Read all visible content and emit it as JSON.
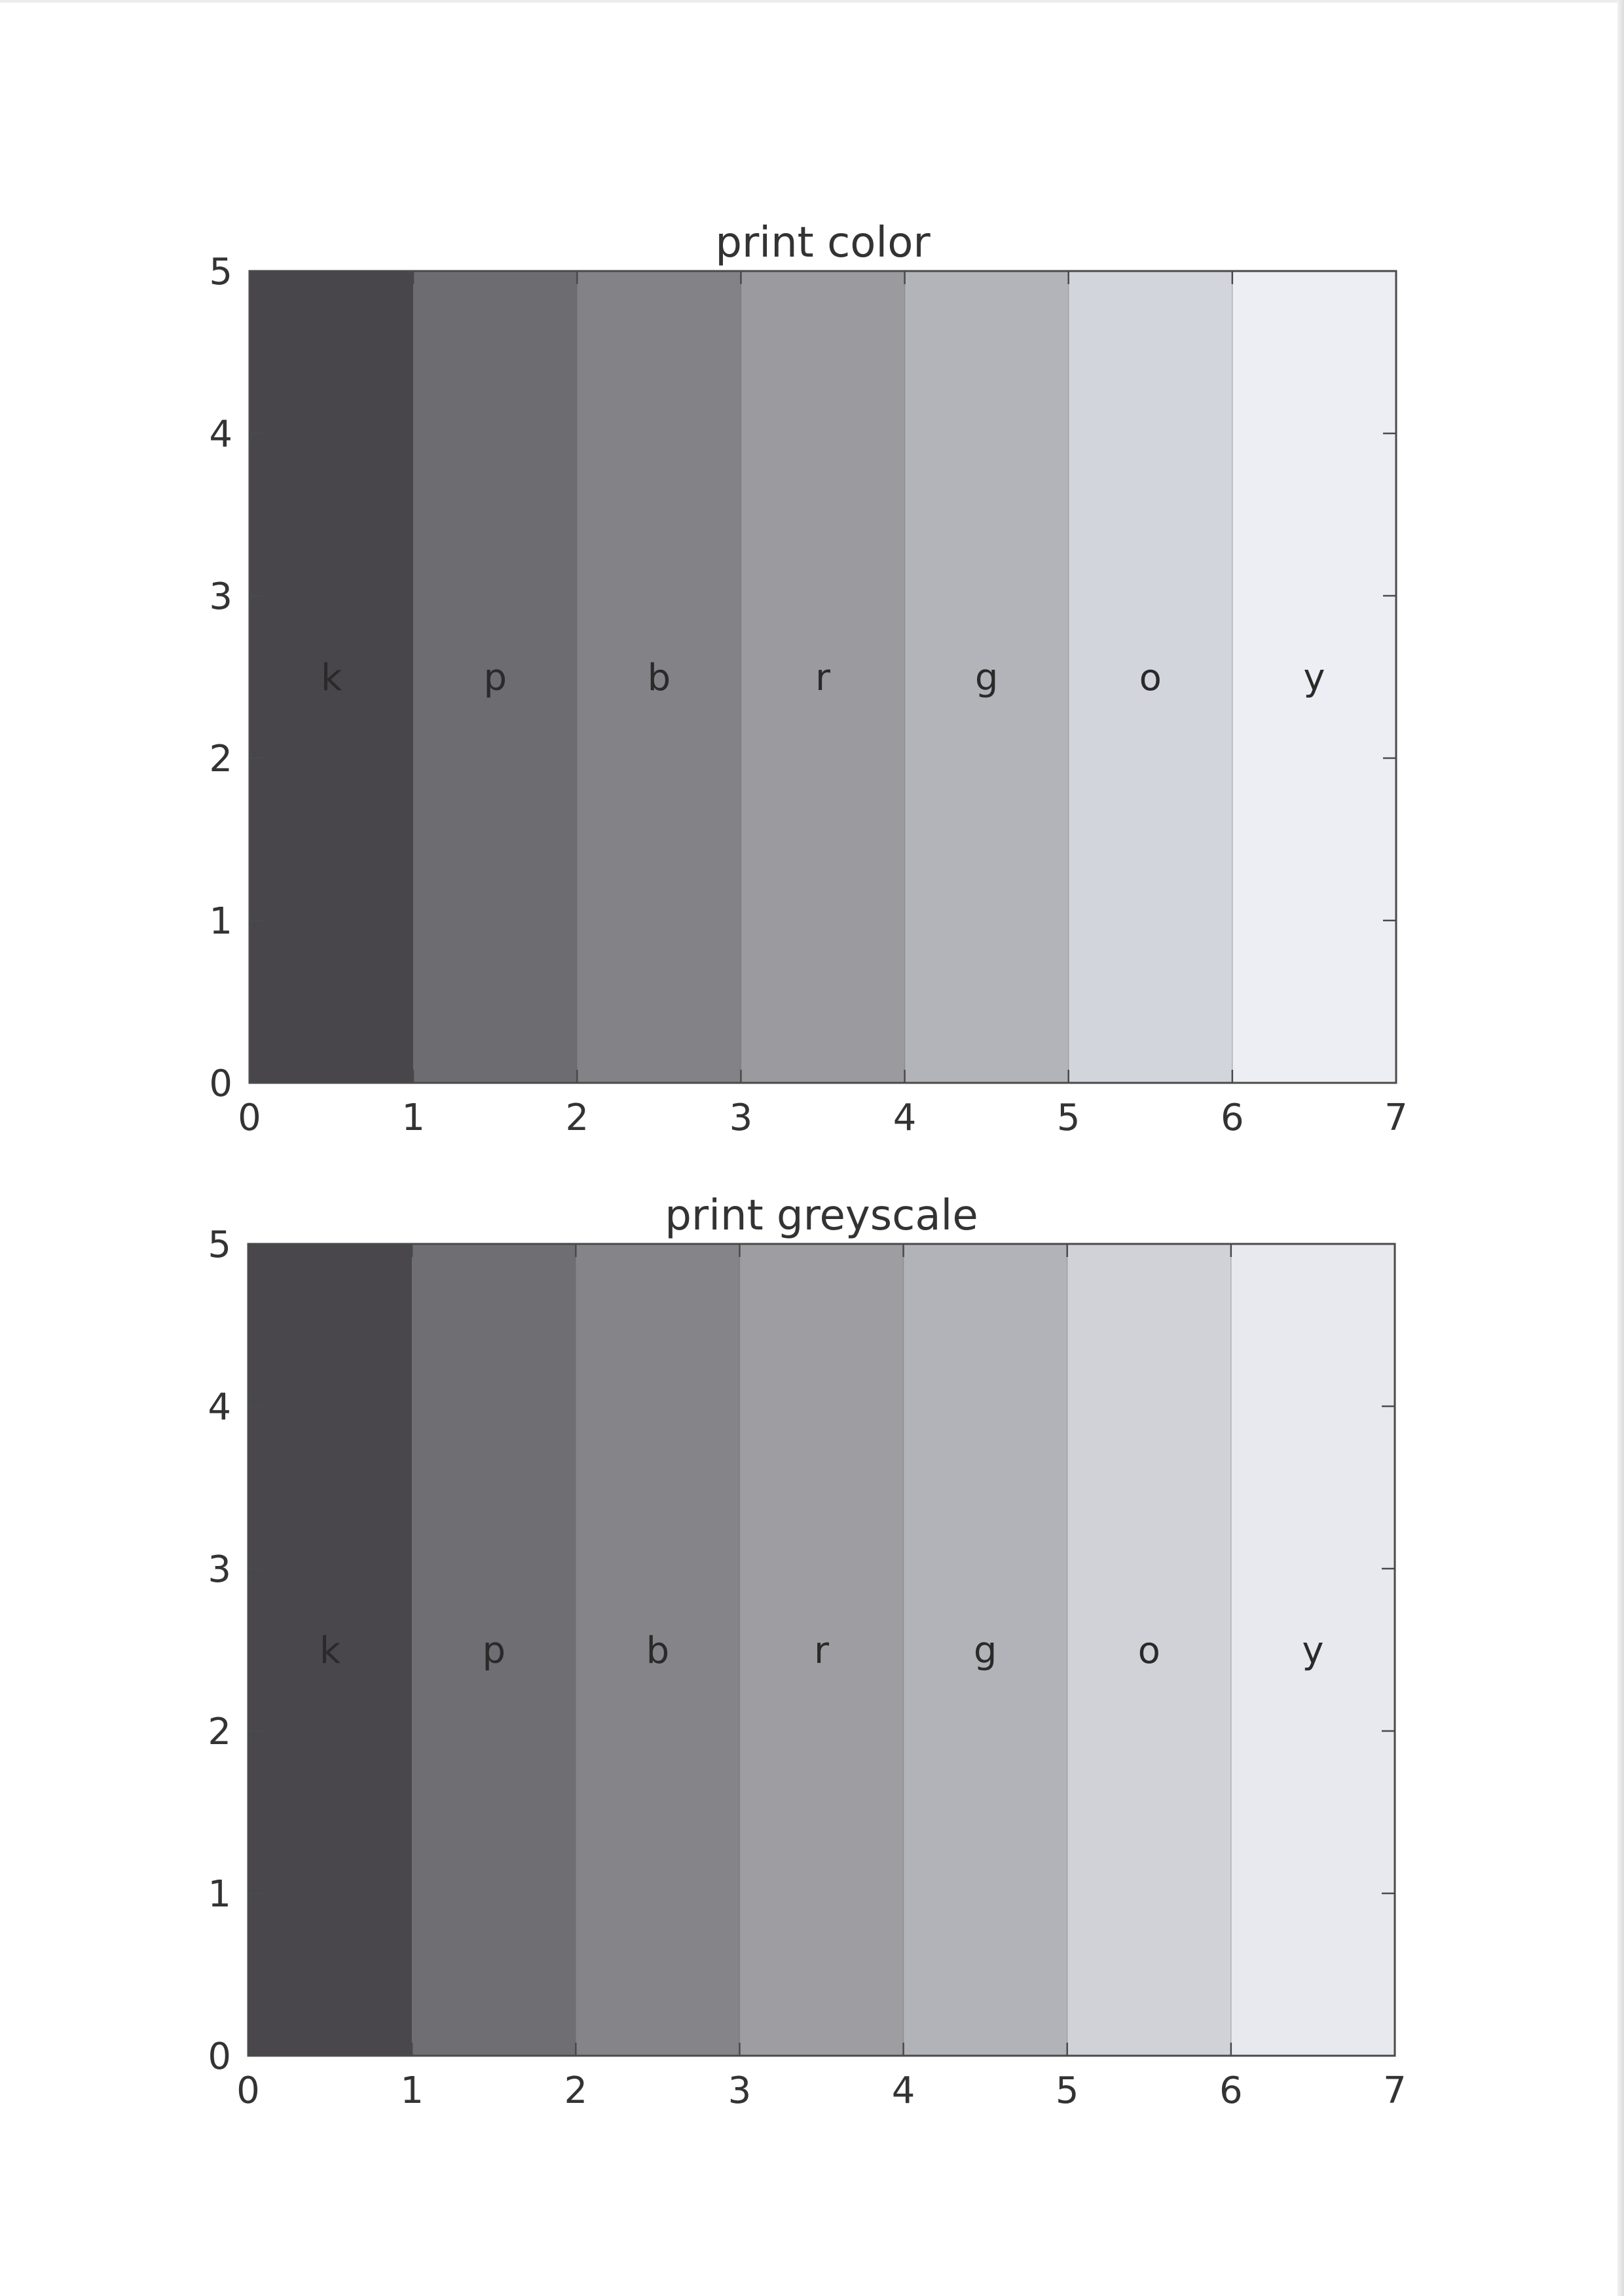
{
  "chart_data": [
    {
      "type": "bar",
      "title": "print color",
      "categories": [
        "k",
        "p",
        "b",
        "r",
        "g",
        "o",
        "y"
      ],
      "x": [
        0,
        1,
        2,
        3,
        4,
        5,
        6
      ],
      "values": [
        5,
        5,
        5,
        5,
        5,
        5,
        5
      ],
      "colors": [
        "#48464b",
        "#6d6c71",
        "#838286",
        "#9b9b9f",
        "#b3b4b9",
        "#d3d5dc",
        "#edeef3"
      ],
      "xlim": [
        0,
        7
      ],
      "ylim": [
        0,
        5
      ],
      "xticks": [
        "0",
        "1",
        "2",
        "3",
        "4",
        "5",
        "6",
        "7"
      ],
      "yticks": [
        "0",
        "1",
        "2",
        "3",
        "4",
        "5"
      ],
      "grid": false,
      "xlabel": "",
      "ylabel": ""
    },
    {
      "type": "bar",
      "title": "print greyscale",
      "categories": [
        "k",
        "p",
        "b",
        "r",
        "g",
        "o",
        "y"
      ],
      "x": [
        0,
        1,
        2,
        3,
        4,
        5,
        6
      ],
      "values": [
        5,
        5,
        5,
        5,
        5,
        5,
        5
      ],
      "colors": [
        "#49474c",
        "#6f6e73",
        "#858488",
        "#9e9ea2",
        "#b2b3b8",
        "#d0d2d8",
        "#e8e9ef"
      ],
      "xlim": [
        0,
        7
      ],
      "ylim": [
        0,
        5
      ],
      "xticks": [
        "0",
        "1",
        "2",
        "3",
        "4",
        "5",
        "6",
        "7"
      ],
      "yticks": [
        "0",
        "1",
        "2",
        "3",
        "4",
        "5"
      ],
      "grid": false,
      "xlabel": "",
      "ylabel": ""
    }
  ]
}
